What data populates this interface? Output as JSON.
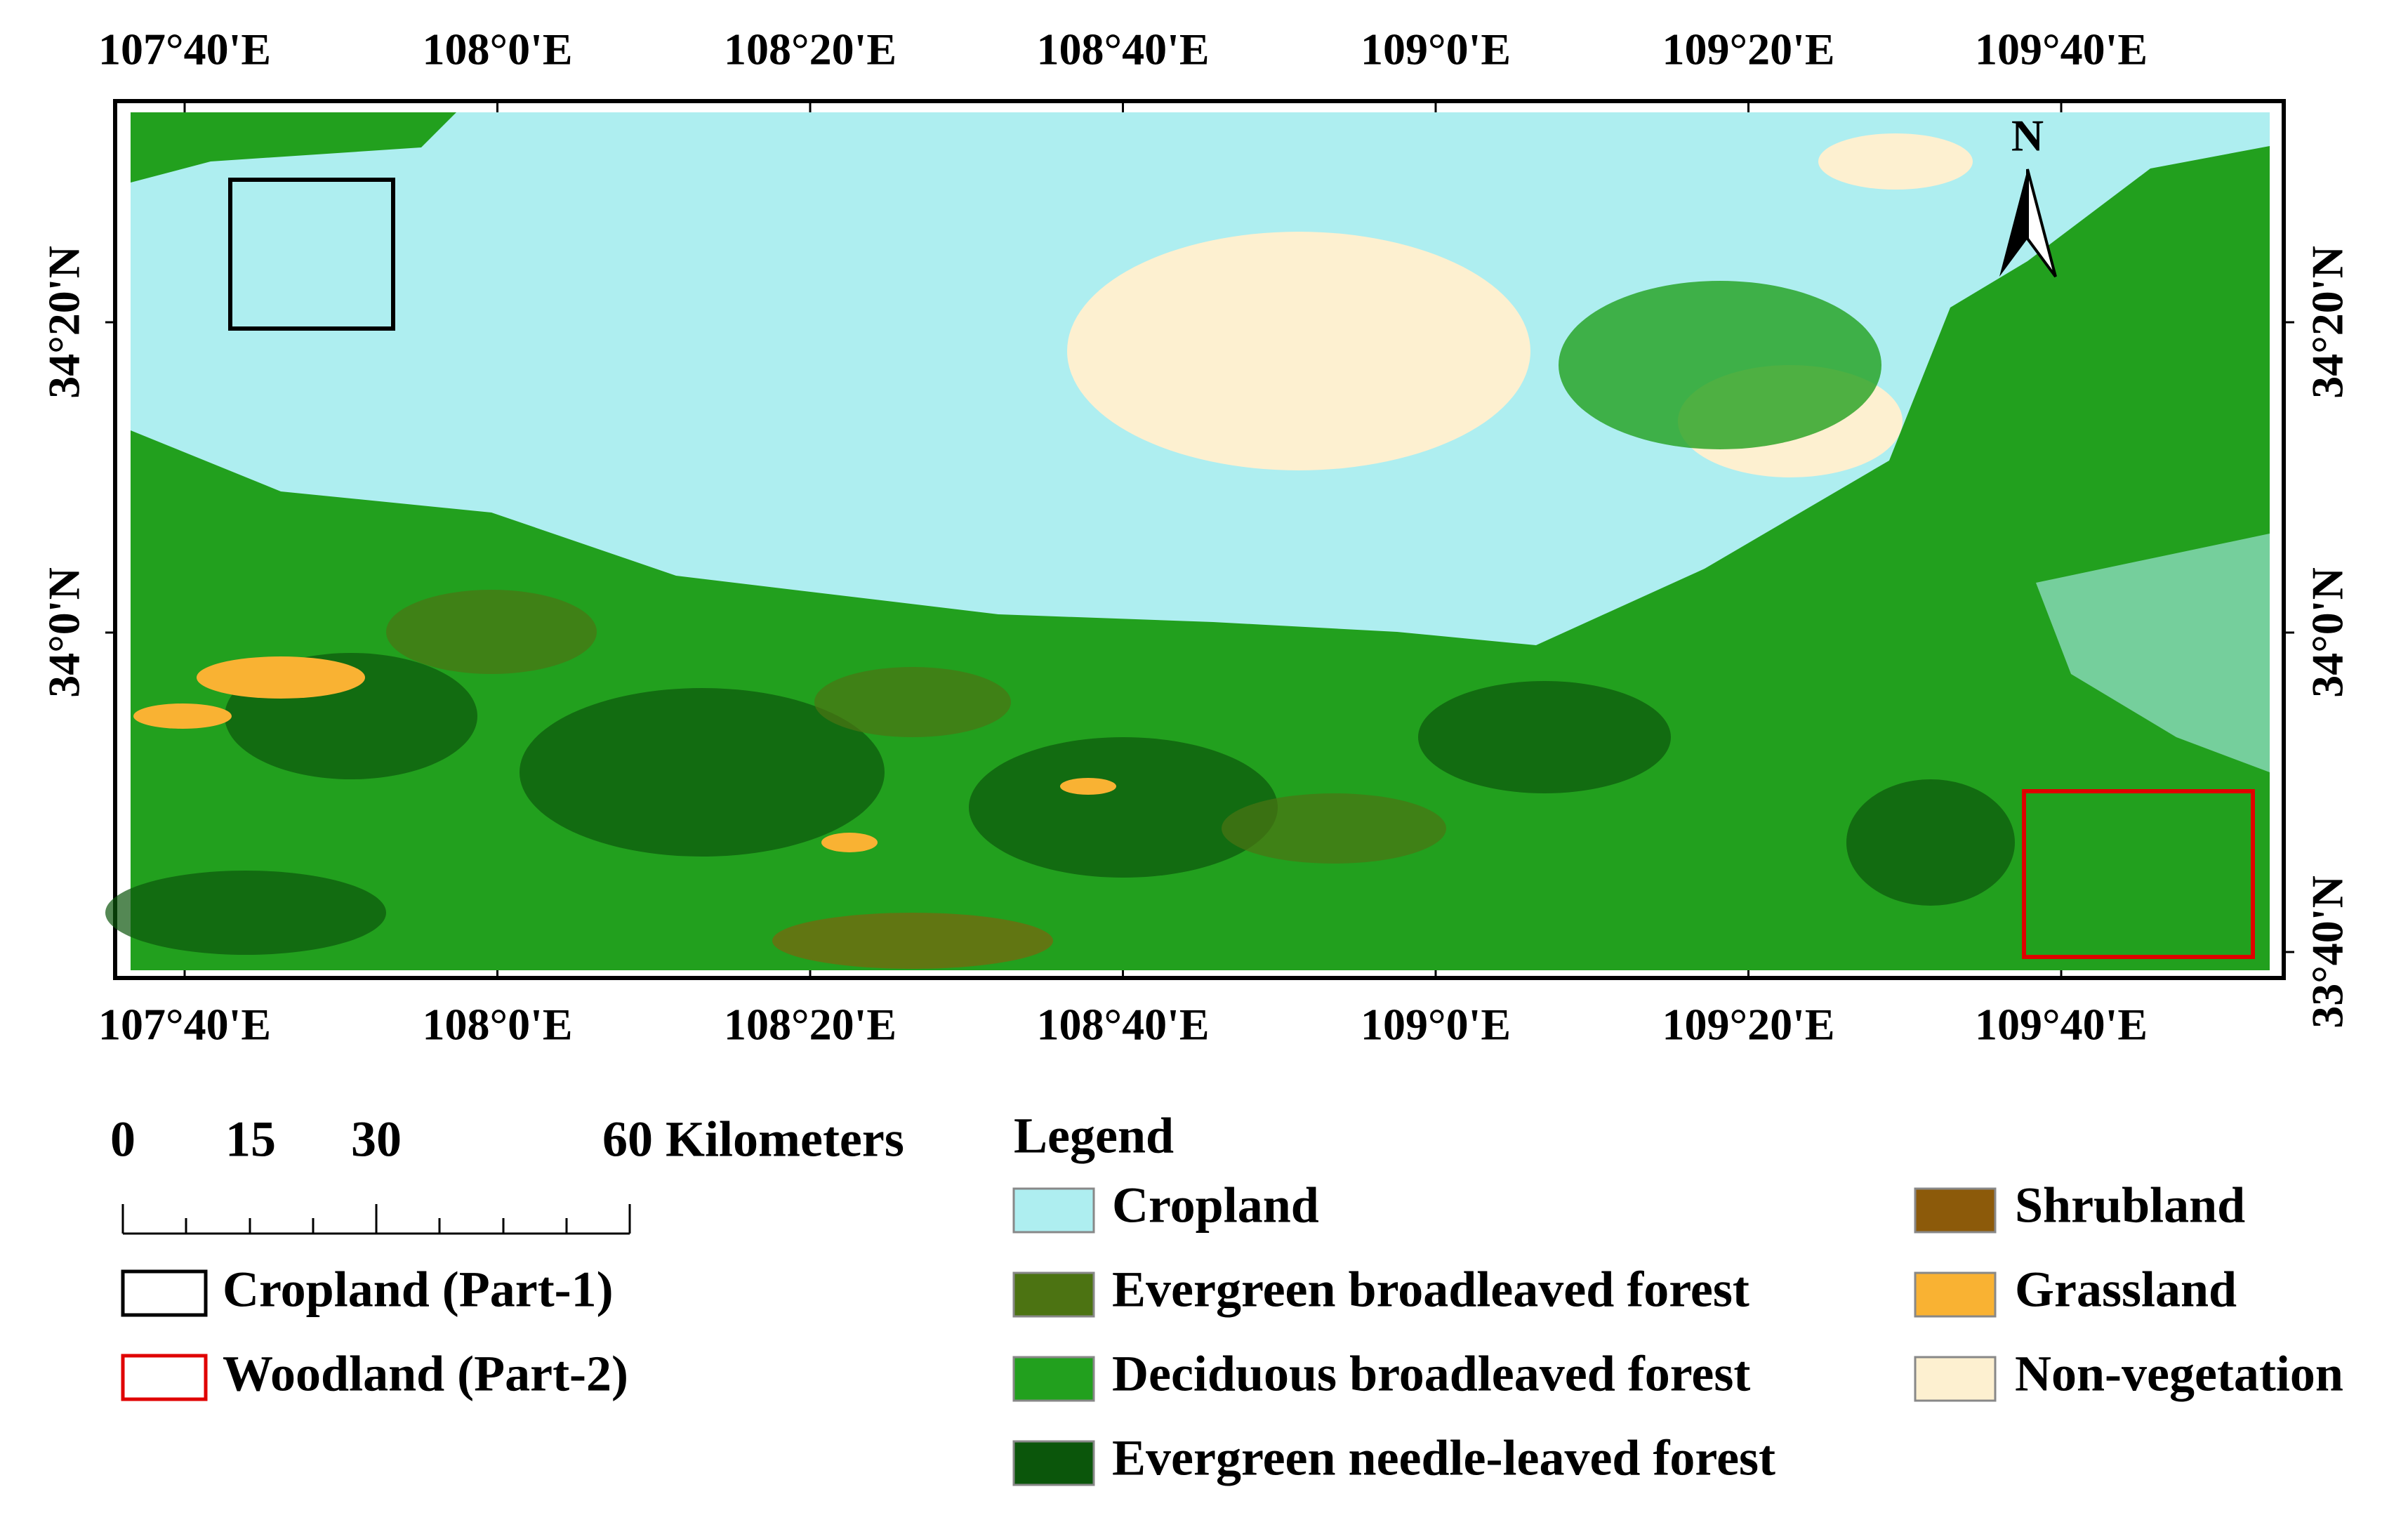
{
  "map": {
    "top_axis": [
      "107°40'E",
      "108°0'E",
      "108°20'E",
      "108°40'E",
      "109°0'E",
      "109°20'E",
      "109°40'E"
    ],
    "bottom_axis": [
      "107°40'E",
      "108°0'E",
      "108°20'E",
      "108°40'E",
      "109°0'E",
      "109°20'E",
      "109°40'E"
    ],
    "left_axis": [
      "34°20'N",
      "34°0'N"
    ],
    "right_axis": [
      "34°20'N",
      "34°0'N",
      "33°40'N"
    ],
    "north_arrow": "N",
    "scale_bar": {
      "labels": [
        "0",
        "15",
        "30",
        "60 Kilometers"
      ]
    },
    "boxes": [
      {
        "label": "Cropland (Part-1)",
        "color": "#000000"
      },
      {
        "label": "Woodland (Part-2)",
        "color": "#e00000"
      }
    ],
    "legend": {
      "title": "Legend",
      "items": [
        {
          "label": "Cropland",
          "color": "#aeeef0"
        },
        {
          "label": "Evergreen broadleaved forest",
          "color": "#4c7312"
        },
        {
          "label": "Deciduous broadleaved forest",
          "color": "#22a01e"
        },
        {
          "label": "Evergreen needle-leaved forest",
          "color": "#0b560b"
        },
        {
          "label": "Shrubland",
          "color": "#8c5a0a"
        },
        {
          "label": "Grassland",
          "color": "#f9b233"
        },
        {
          "label": "Non-vegetation",
          "color": "#fdf0d0"
        }
      ]
    }
  }
}
